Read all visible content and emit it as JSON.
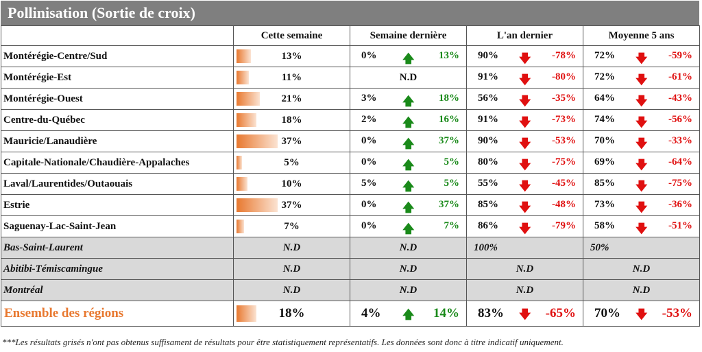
{
  "title": "Pollinisation (Sortie de croix)",
  "headers": [
    "",
    "Cette semaine",
    "Semaine dernière",
    "L'an dernier",
    "Moyenne 5 ans"
  ],
  "rows": [
    {
      "region": "Montérégie-Centre/Sud",
      "cw": "13%",
      "cw_value": 13,
      "lw": "0%",
      "lw_diff": "13%",
      "ly": "90%",
      "ly_diff": "-78%",
      "avg": "72%",
      "avg_diff": "-59%"
    },
    {
      "region": "Montérégie-Est",
      "cw": "11%",
      "cw_value": 11,
      "lw_nd": "N.D",
      "ly": "91%",
      "ly_diff": "-80%",
      "avg": "72%",
      "avg_diff": "-61%"
    },
    {
      "region": "Montérégie-Ouest",
      "cw": "21%",
      "cw_value": 21,
      "lw": "3%",
      "lw_diff": "18%",
      "ly": "56%",
      "ly_diff": "-35%",
      "avg": "64%",
      "avg_diff": "-43%"
    },
    {
      "region": "Centre-du-Québec",
      "cw": "18%",
      "cw_value": 18,
      "lw": "2%",
      "lw_diff": "16%",
      "ly": "91%",
      "ly_diff": "-73%",
      "avg": "74%",
      "avg_diff": "-56%"
    },
    {
      "region": "Mauricie/Lanaudière",
      "cw": "37%",
      "cw_value": 37,
      "lw": "0%",
      "lw_diff": "37%",
      "ly": "90%",
      "ly_diff": "-53%",
      "avg": "70%",
      "avg_diff": "-33%"
    },
    {
      "region": "Capitale-Nationale/Chaudière-Appalaches",
      "cw": "5%",
      "cw_value": 5,
      "lw": "0%",
      "lw_diff": "5%",
      "ly": "80%",
      "ly_diff": "-75%",
      "avg": "69%",
      "avg_diff": "-64%"
    },
    {
      "region": "Laval/Laurentides/Outaouais",
      "cw": "10%",
      "cw_value": 10,
      "lw": "5%",
      "lw_diff": "5%",
      "ly": "55%",
      "ly_diff": "-45%",
      "avg": "85%",
      "avg_diff": "-75%"
    },
    {
      "region": "Estrie",
      "cw": "37%",
      "cw_value": 37,
      "lw": "0%",
      "lw_diff": "37%",
      "ly": "85%",
      "ly_diff": "-48%",
      "avg": "73%",
      "avg_diff": "-36%"
    },
    {
      "region": "Saguenay-Lac-Saint-Jean",
      "cw": "7%",
      "cw_value": 7,
      "lw": "0%",
      "lw_diff": "7%",
      "ly": "86%",
      "ly_diff": "-79%",
      "avg": "58%",
      "avg_diff": "-51%"
    }
  ],
  "grey_rows": [
    {
      "region": "Bas-Saint-Laurent",
      "cw": "N.D",
      "lw": "N.D",
      "ly": "100%",
      "avg": "50%"
    },
    {
      "region": "Abitibi-Témiscamingue",
      "cw": "N.D",
      "lw": "N.D",
      "ly": "N.D",
      "avg": "N.D"
    },
    {
      "region": "Montréal",
      "cw": "N.D",
      "lw": "N.D",
      "ly": "N.D",
      "avg": "N.D"
    }
  ],
  "total": {
    "region": "Ensemble des régions",
    "cw": "18%",
    "cw_value": 18,
    "lw": "4%",
    "lw_diff": "14%",
    "ly": "83%",
    "ly_diff": "-65%",
    "avg": "70%",
    "avg_diff": "-53%"
  },
  "arrows": {
    "up": "🡅",
    "down": "🡇"
  },
  "colors": {
    "accent": "#e8782f",
    "up": "#1a8a1a",
    "down": "#e01010",
    "grey_row": "#d9d9d9",
    "title_bg": "#7f7f7f"
  },
  "footnote": "***Les résultats grisés n'ont pas obtenus suffisament de résultats pour être statistiquement représentatifs. Les données sont donc à titre indicatif uniquement."
}
